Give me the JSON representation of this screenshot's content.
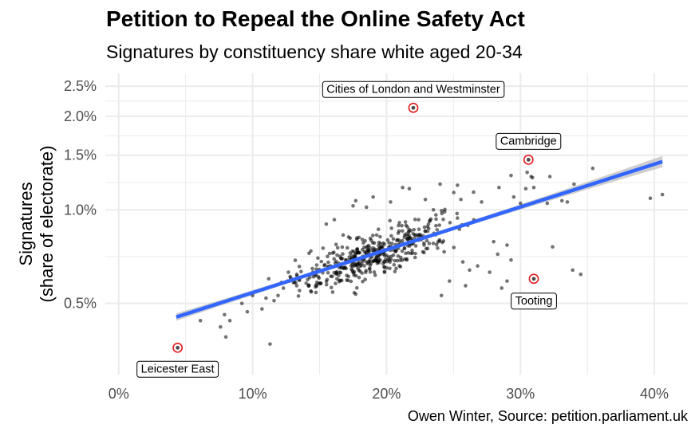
{
  "header": {
    "title": "Petition to Repeal the Online Safety Act",
    "subtitle": "Signatures by constituency share white aged 20-34"
  },
  "caption": "Owen Winter, Source: petition.parliament.uk",
  "chart_data": {
    "type": "scatter",
    "title": "Petition to Repeal the Online Safety Act",
    "subtitle": "Signatures by constituency share white aged 20-34",
    "xlabel": "",
    "ylabel": [
      "Signatures",
      "(share of electorate)"
    ],
    "x_unit": "percent",
    "y_unit": "percent",
    "y_scale": "log",
    "xlim": [
      -1,
      42.5
    ],
    "ylim": [
      0.295,
      2.75
    ],
    "x_ticks": [
      0,
      10,
      20,
      30,
      40
    ],
    "x_tick_labels": [
      "0%",
      "10%",
      "20%",
      "30%",
      "40%"
    ],
    "y_ticks": [
      0.5,
      1.0,
      1.5,
      2.0,
      2.5
    ],
    "y_tick_labels": [
      "0.5%",
      "1.0%",
      "1.5%",
      "2.0%",
      "2.5%"
    ],
    "grid": true,
    "colors": {
      "points": "#000000",
      "trend": "#3366ff",
      "band": "#bfbfbf",
      "highlight": "#e31a1c",
      "grid": "#ebebeb"
    },
    "trend": {
      "x": [
        4.3,
        40.6
      ],
      "y": [
        0.452,
        1.43
      ]
    },
    "highlighted": [
      {
        "label": "Cities of London and Westminster",
        "x": 22.0,
        "y": 2.13
      },
      {
        "label": "Cambridge",
        "x": 30.6,
        "y": 1.45
      },
      {
        "label": "Tooting",
        "x": 31.0,
        "y": 0.6
      },
      {
        "label": "Leicester East",
        "x": 4.4,
        "y": 0.36
      }
    ],
    "extra_points": [
      [
        6.1,
        0.44
      ],
      [
        7.6,
        0.42
      ],
      [
        7.9,
        0.46
      ],
      [
        8.0,
        0.39
      ],
      [
        8.3,
        0.44
      ],
      [
        9.2,
        0.5
      ],
      [
        9.6,
        0.47
      ],
      [
        10.0,
        0.53
      ],
      [
        10.7,
        0.48
      ],
      [
        11.0,
        0.52
      ],
      [
        11.2,
        0.6
      ],
      [
        11.3,
        0.37
      ],
      [
        11.6,
        0.51
      ],
      [
        11.9,
        0.53
      ],
      [
        12.3,
        0.56
      ],
      [
        12.6,
        0.59
      ],
      [
        12.8,
        0.61
      ],
      [
        13.3,
        0.62
      ],
      [
        13.5,
        0.55
      ],
      [
        14.2,
        0.57
      ],
      [
        14.5,
        0.63
      ],
      [
        15.1,
        0.58
      ],
      [
        15.8,
        0.66
      ],
      [
        16.3,
        0.6
      ],
      [
        17.0,
        0.69
      ],
      [
        24.7,
        0.59
      ],
      [
        24.1,
        0.53
      ],
      [
        25.9,
        0.57
      ],
      [
        26.2,
        0.64
      ],
      [
        25.7,
        0.68
      ],
      [
        26.8,
        0.66
      ],
      [
        27.7,
        0.63
      ],
      [
        28.3,
        0.72
      ],
      [
        28.0,
        0.79
      ],
      [
        29.0,
        0.77
      ],
      [
        29.3,
        0.69
      ],
      [
        29.0,
        0.59
      ],
      [
        28.6,
        0.56
      ],
      [
        32.4,
        0.76
      ],
      [
        33.9,
        0.64
      ],
      [
        34.5,
        0.62
      ],
      [
        32.0,
        1.05
      ],
      [
        33.1,
        1.07
      ],
      [
        33.5,
        1.06
      ],
      [
        34.0,
        1.21
      ],
      [
        35.4,
        1.36
      ],
      [
        32.2,
        1.28
      ],
      [
        30.4,
        1.17
      ],
      [
        28.4,
        1.18
      ],
      [
        29.3,
        1.29
      ],
      [
        29.5,
        1.1
      ],
      [
        30.9,
        1.27
      ],
      [
        31.0,
        1.18
      ],
      [
        30.5,
        1.32
      ],
      [
        30.8,
        1.28
      ],
      [
        30.0,
        1.05
      ],
      [
        27.1,
        1.06
      ],
      [
        26.5,
        1.14
      ],
      [
        25.3,
        1.2
      ],
      [
        24.0,
        1.21
      ],
      [
        21.7,
        1.17
      ],
      [
        21.2,
        1.18
      ],
      [
        17.7,
        1.07
      ],
      [
        17.5,
        1.03
      ],
      [
        18.5,
        1.02
      ],
      [
        15.5,
        0.9
      ],
      [
        16.1,
        0.93
      ],
      [
        39.7,
        1.09
      ],
      [
        40.6,
        1.12
      ],
      [
        19.0,
        1.1
      ],
      [
        20.3,
        1.06
      ],
      [
        23.5,
        1.0
      ],
      [
        22.9,
        1.08
      ]
    ]
  }
}
